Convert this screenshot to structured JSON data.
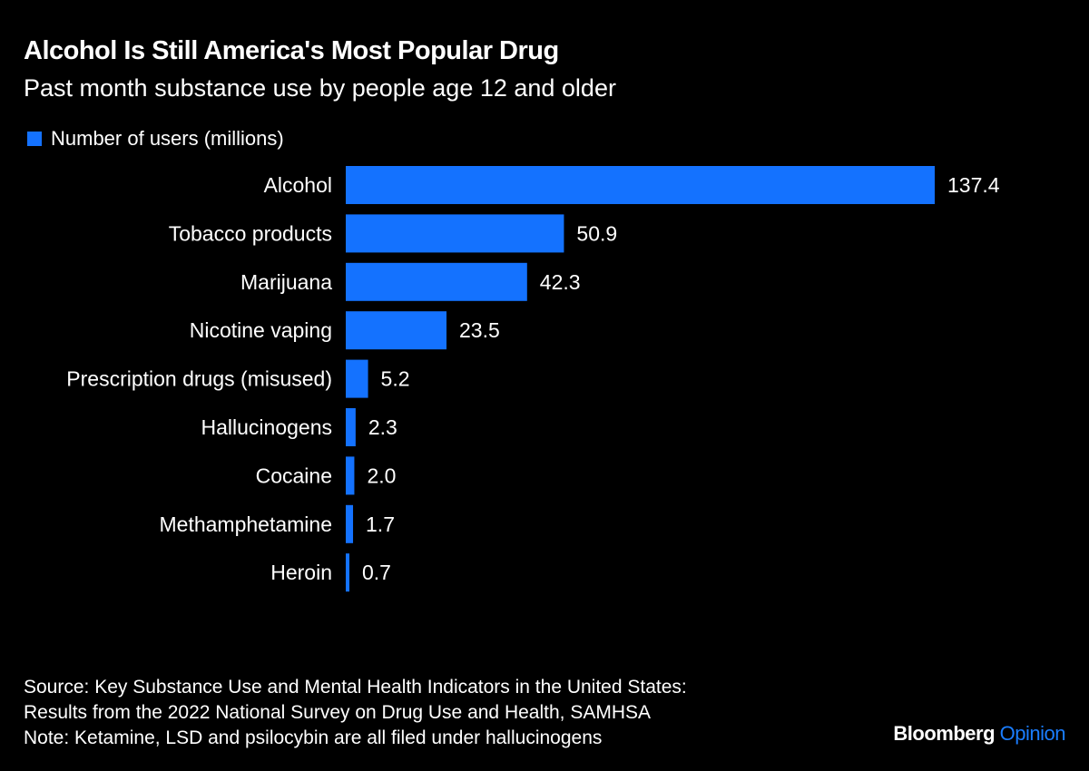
{
  "chart_data": {
    "type": "bar",
    "orientation": "horizontal",
    "title": "Alcohol Is Still America's Most Popular Drug",
    "subtitle": "Past month substance use by people age 12 and older",
    "categories": [
      "Alcohol",
      "Tobacco products",
      "Marijuana",
      "Nicotine vaping",
      "Prescription drugs (misused)",
      "Hallucinogens",
      "Cocaine",
      "Methamphetamine",
      "Heroin"
    ],
    "series": [
      {
        "name": "Number of users (millions)",
        "values": [
          137.4,
          50.9,
          42.3,
          23.5,
          5.2,
          2.3,
          2.0,
          1.7,
          0.7
        ],
        "color": "#1472ff"
      }
    ],
    "value_labels": [
      "137.4",
      "50.9",
      "42.3",
      "23.5",
      "5.2",
      "2.3",
      "2.0",
      "1.7",
      "0.7"
    ],
    "legend_position": "top-left",
    "grid": false,
    "xlim": [
      0,
      137.4
    ]
  },
  "footer": {
    "source_line1": "Source: Key Substance Use and Mental Health Indicators in the United States:",
    "source_line2": "Results from the 2022 National Survey on Drug Use and Health, SAMHSA",
    "note": "Note: Ketamine, LSD and psilocybin are all filed under hallucinogens"
  },
  "logo": {
    "brand": "Bloomberg",
    "section": "Opinion",
    "section_color": "#1a7dff"
  }
}
